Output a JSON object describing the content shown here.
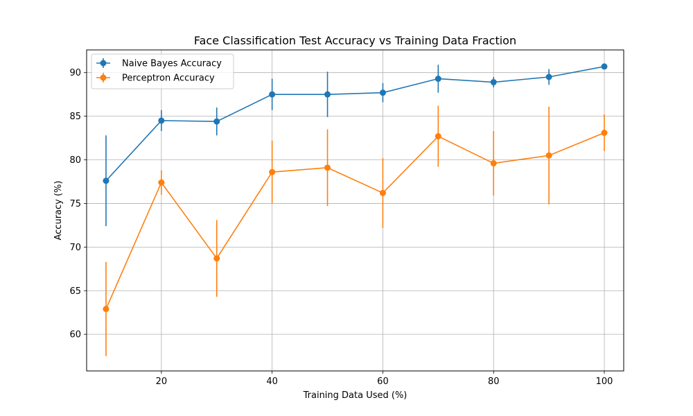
{
  "chart_data": {
    "type": "line",
    "title": "Face Classification Test Accuracy vs Training Data Fraction",
    "xlabel": "Training Data Used (%)",
    "ylabel": "Accuracy (%)",
    "x": [
      10,
      20,
      30,
      40,
      50,
      60,
      70,
      80,
      90,
      100
    ],
    "xlim": [
      6.5,
      103.5
    ],
    "ylim": [
      55.8,
      92.6
    ],
    "xticks": [
      20,
      40,
      60,
      80,
      100
    ],
    "yticks": [
      60,
      65,
      70,
      75,
      80,
      85,
      90
    ],
    "grid": true,
    "legend_position": "top-left",
    "series": [
      {
        "name": "Naive Bayes Accuracy",
        "color": "#1f77b4",
        "values": [
          77.6,
          84.5,
          84.4,
          87.5,
          87.5,
          87.7,
          89.3,
          88.9,
          89.5,
          90.7
        ],
        "errors": [
          5.2,
          1.2,
          1.6,
          1.8,
          2.6,
          1.1,
          1.6,
          0.6,
          0.9,
          0.1
        ]
      },
      {
        "name": "Perceptron Accuracy",
        "color": "#ff7f0e",
        "values": [
          62.9,
          77.4,
          68.7,
          78.6,
          79.1,
          76.2,
          82.7,
          79.6,
          80.5,
          83.1
        ],
        "errors": [
          5.4,
          1.4,
          4.4,
          3.6,
          4.4,
          4.0,
          3.5,
          3.7,
          5.6,
          2.1
        ]
      }
    ]
  }
}
